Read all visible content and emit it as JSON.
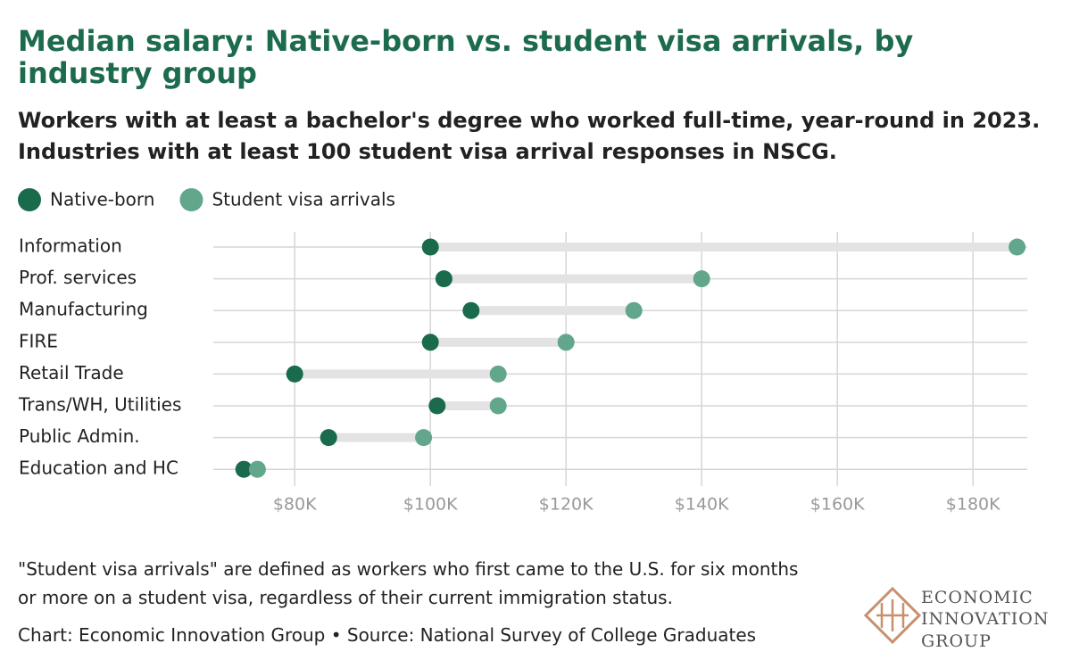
{
  "chart_data": {
    "type": "dumbbell",
    "title": "Median salary: Native-born vs. student visa arrivals, by industry group",
    "subtitle": [
      "Workers with at least a bachelor's degree who worked full-time, year-round in 2023.",
      "Industries with at least 100 student visa arrival responses in NSCG."
    ],
    "categories": [
      "Information",
      "Prof. services",
      "Manufacturing",
      "FIRE",
      "Retail Trade",
      "Trans/WH, Utilities",
      "Public Admin.",
      "Education and HC"
    ],
    "series": [
      {
        "name": "Native-born",
        "color": "#1a6b4c",
        "values": [
          100000,
          102000,
          106000,
          100000,
          80000,
          101000,
          85000,
          72500
        ]
      },
      {
        "name": "Student visa arrivals",
        "color": "#62a68b",
        "values": [
          186500,
          140000,
          130000,
          120000,
          110000,
          110000,
          99000,
          74500
        ]
      }
    ],
    "xlim": [
      68000,
      188000
    ],
    "xticks": [
      {
        "value": 80000,
        "label": "$80K"
      },
      {
        "value": 100000,
        "label": "$100K"
      },
      {
        "value": 120000,
        "label": "$120K"
      },
      {
        "value": 140000,
        "label": "$140K"
      },
      {
        "value": 160000,
        "label": "$160K"
      },
      {
        "value": 180000,
        "label": "$180K"
      }
    ],
    "grid": true,
    "note": "\"Student visa arrivals\" are defined as workers who first came to the U.S. for six months or more on a student visa, regardless of their current immigration status.",
    "source": "Chart: Economic Innovation Group • Source: National Survey of College Graduates",
    "logo_text": [
      "ECONOMIC",
      "INNOVATION",
      "GROUP"
    ]
  }
}
